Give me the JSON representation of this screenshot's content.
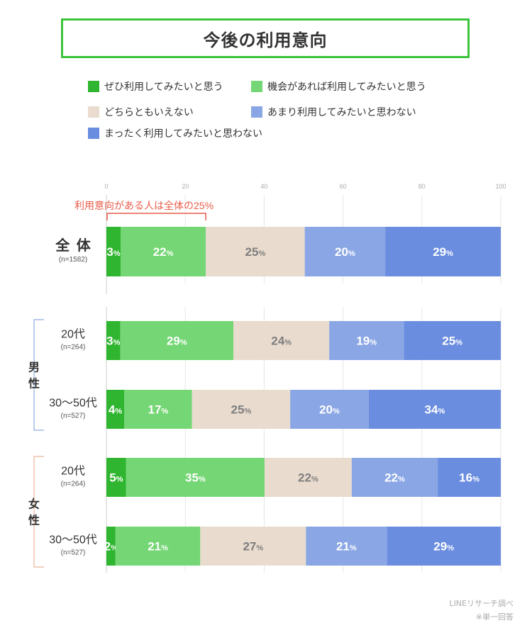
{
  "title": "今後の利用意向",
  "legend": [
    {
      "label": "ぜひ利用してみたいと思う",
      "color": "#2fb52f",
      "icon": "green-square"
    },
    {
      "label": "機会があれば利用してみたいと思う",
      "color": "#74d674",
      "icon": "light-green-square"
    },
    {
      "label": "どちらともいえない",
      "color": "#e9dbce",
      "icon": "beige-square"
    },
    {
      "label": "あまり利用してみたいと思わない",
      "color": "#8aa6e4",
      "icon": "light-blue-square"
    },
    {
      "label": "まったく利用してみたいと思わない",
      "color": "#6a8ddf",
      "icon": "blue-square"
    }
  ],
  "annotation": "利用意向がある人は全体の25%",
  "source": "LINEリサーチ調べ",
  "note": "※単一回答",
  "chart_data": {
    "type": "bar",
    "orientation": "horizontal",
    "stacked": true,
    "percent_suffix": "%",
    "title": "今後の利用意向",
    "xlim": [
      0,
      100
    ],
    "xticks": [
      0,
      20,
      40,
      60,
      80,
      100
    ],
    "grid": true,
    "groups": [
      {
        "label": "男性",
        "color": "#8eaee0",
        "rows": [
          2,
          3
        ]
      },
      {
        "label": "女性",
        "color": "#ecb49a",
        "rows": [
          4,
          5
        ]
      }
    ],
    "rows": [
      {
        "label": "全 体",
        "n": "(n=1582)",
        "large": true,
        "values": [
          3,
          22,
          25,
          20,
          29
        ],
        "bounds": [
          0,
          3.6,
          25.2,
          50.3,
          70.7,
          100
        ]
      },
      null,
      {
        "label": "20代",
        "n": "(n=264)",
        "values": [
          3,
          29,
          24,
          19,
          25
        ],
        "bounds": [
          0,
          3.5,
          32.2,
          56.5,
          75.4,
          100
        ]
      },
      {
        "label": "30～50代",
        "n": "(n=527)",
        "values": [
          4,
          17,
          25,
          20,
          34
        ],
        "bounds": [
          0,
          4.5,
          21.7,
          46.6,
          66.5,
          100
        ]
      },
      {
        "label": "20代",
        "n": "(n=264)",
        "values": [
          5,
          35,
          22,
          22,
          16
        ],
        "bounds": [
          0,
          5.0,
          40.1,
          62.2,
          84.0,
          100
        ]
      },
      {
        "label": "30～50代",
        "n": "(n=527)",
        "values": [
          2,
          21,
          27,
          21,
          29
        ],
        "bounds": [
          0,
          2.3,
          23.8,
          50.6,
          71.1,
          100
        ]
      }
    ],
    "series_label_colors": [
      "#ffffff",
      "#ffffff",
      "#7f7f7f",
      "#ffffff",
      "#ffffff"
    ]
  }
}
